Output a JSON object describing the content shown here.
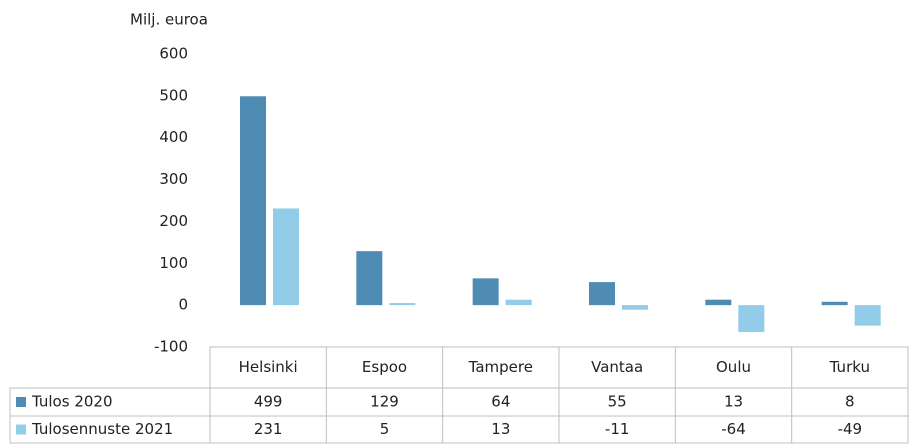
{
  "chart_data": {
    "type": "bar",
    "y_label": "Milj. euroa",
    "categories": [
      "Helsinki",
      "Espoo",
      "Tampere",
      "Vantaa",
      "Oulu",
      "Turku"
    ],
    "series": [
      {
        "name": "Tulos 2020",
        "color": "#4e8cb3",
        "values": [
          499,
          129,
          64,
          55,
          13,
          8
        ]
      },
      {
        "name": "Tulosennuste 2021",
        "color": "#93cce9",
        "values": [
          231,
          5,
          13,
          -11,
          -64,
          -49
        ]
      }
    ],
    "ylim": [
      -100,
      600
    ],
    "yticks": [
      -100,
      0,
      100,
      200,
      300,
      400,
      500,
      600
    ],
    "grid": false
  }
}
